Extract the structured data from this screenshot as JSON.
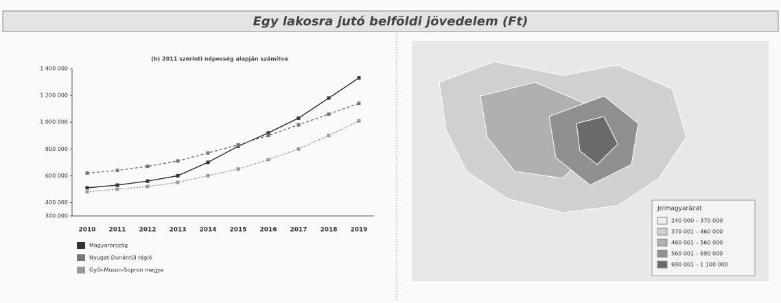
{
  "header": {
    "title": "Egy lakosra jutó belföldi jövedelem (Ft)"
  },
  "chart_data": {
    "type": "line",
    "title": "(b) 2011 szerinti népesség alapján számítva",
    "categories": [
      "2010",
      "2011",
      "2012",
      "2013",
      "2014",
      "2015",
      "2016",
      "2017",
      "2018",
      "2019"
    ],
    "series": [
      {
        "name": "Magyarország",
        "color": "#333333",
        "values": [
          510000,
          530000,
          560000,
          600000,
          700000,
          820000,
          920000,
          1030000,
          1180000,
          1330000
        ]
      },
      {
        "name": "Nyugat-Dunántúl régió",
        "color": "#777777",
        "values": [
          620000,
          640000,
          670000,
          710000,
          770000,
          830000,
          900000,
          980000,
          1060000,
          1140000
        ]
      },
      {
        "name": "Győr-Moson-Sopron megye",
        "color": "#999999",
        "values": [
          480000,
          500000,
          520000,
          550000,
          600000,
          650000,
          720000,
          800000,
          900000,
          1010000
        ]
      }
    ],
    "ylim": [
      300000,
      1400000
    ],
    "yticks": [
      {
        "value": 300000,
        "label": "300 000"
      },
      {
        "value": 400000,
        "label": "400 000"
      },
      {
        "value": 600000,
        "label": "600 000"
      },
      {
        "value": 800000,
        "label": "800 000"
      },
      {
        "value": 1000000,
        "label": "1 000 000"
      },
      {
        "value": 1200000,
        "label": "1 200 000"
      },
      {
        "value": 1400000,
        "label": "1 400 000"
      }
    ],
    "grid": false
  },
  "map": {
    "legend_title": "Jelmagyarázat",
    "classes": [
      "240 000 – 370 000",
      "370 001 – 460 000",
      "460 001 – 560 000",
      "560 001 – 690 000",
      "690 001 – 1 100 000"
    ],
    "colors": [
      "#eeeeee",
      "#d0d0d0",
      "#b0b0b0",
      "#909090",
      "#6a6a6a"
    ]
  }
}
